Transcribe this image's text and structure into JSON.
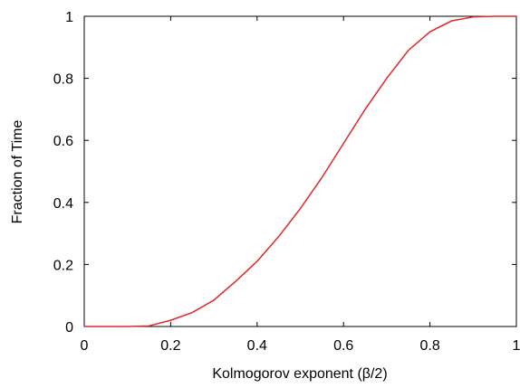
{
  "chart_data": {
    "type": "line",
    "xlabel": "Kolmogorov exponent (β/2)",
    "ylabel": "Fraction of Time",
    "x": [
      0,
      0.1,
      0.15,
      0.2,
      0.25,
      0.3,
      0.35,
      0.4,
      0.45,
      0.5,
      0.55,
      0.6,
      0.65,
      0.7,
      0.75,
      0.8,
      0.85,
      0.9,
      0.95,
      1
    ],
    "series": [
      {
        "color": "#e0262a",
        "values": [
          0,
          0,
          0.002,
          0.02,
          0.045,
          0.085,
          0.145,
          0.21,
          0.29,
          0.38,
          0.48,
          0.59,
          0.7,
          0.8,
          0.89,
          0.95,
          0.985,
          0.998,
          1,
          1
        ]
      }
    ],
    "xlim": [
      0,
      1
    ],
    "ylim": [
      0,
      1
    ],
    "xticks": [
      0,
      0.2,
      0.4,
      0.6,
      0.8,
      1
    ],
    "yticks": [
      0,
      0.2,
      0.4,
      0.6,
      0.8,
      1
    ],
    "grid": false
  }
}
